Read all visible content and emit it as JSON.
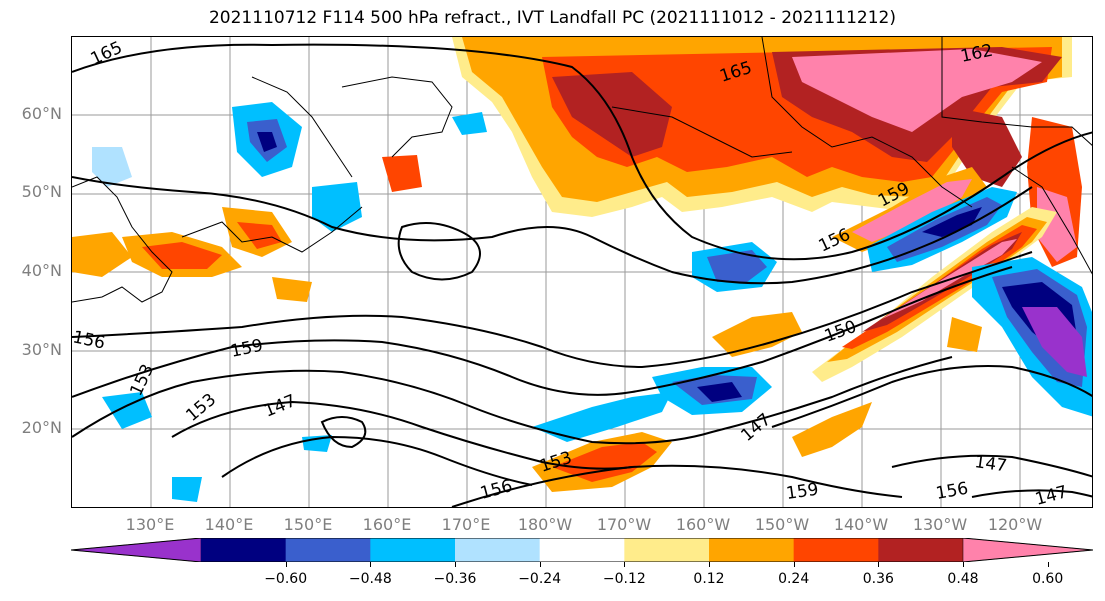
{
  "title": "2021110712 F114 500 hPa refract., IVT Landfall PC (2021111012 - 2021111212)",
  "lat_labels": [
    "60°N",
    "50°N",
    "40°N",
    "30°N",
    "20°N"
  ],
  "lon_labels": [
    "130°E",
    "140°E",
    "150°E",
    "160°E",
    "170°E",
    "180°W",
    "170°W",
    "160°W",
    "150°W",
    "140°W",
    "130°W",
    "120°W"
  ],
  "contour_labels": [
    "165",
    "165",
    "162",
    "159",
    "156",
    "150",
    "159",
    "156",
    "153",
    "153",
    "147",
    "147",
    "153",
    "156",
    "159",
    "156",
    "147",
    "147"
  ],
  "colorbar": {
    "ticks": [
      "−0.60",
      "−0.48",
      "−0.36",
      "−0.24",
      "−0.12",
      "0.12",
      "0.24",
      "0.36",
      "0.48",
      "0.60"
    ],
    "colors": [
      "#9932cc",
      "#000080",
      "#3a5fcd",
      "#00bfff",
      "#b0e2ff",
      "#ffffff",
      "#ffec8b",
      "#ffa500",
      "#ff4500",
      "#b22222",
      "#ff82ab"
    ]
  },
  "colors": {
    "positive_strong": "#ff82ab",
    "positive_high": "#b22222",
    "positive_mid": "#ff4500",
    "positive_low": "#ffa500",
    "positive_weak": "#ffec8b",
    "negative_weak": "#b0e2ff",
    "negative_low": "#00bfff",
    "negative_mid": "#3a5fcd",
    "negative_high": "#000080",
    "negative_strong": "#9932cc"
  }
}
